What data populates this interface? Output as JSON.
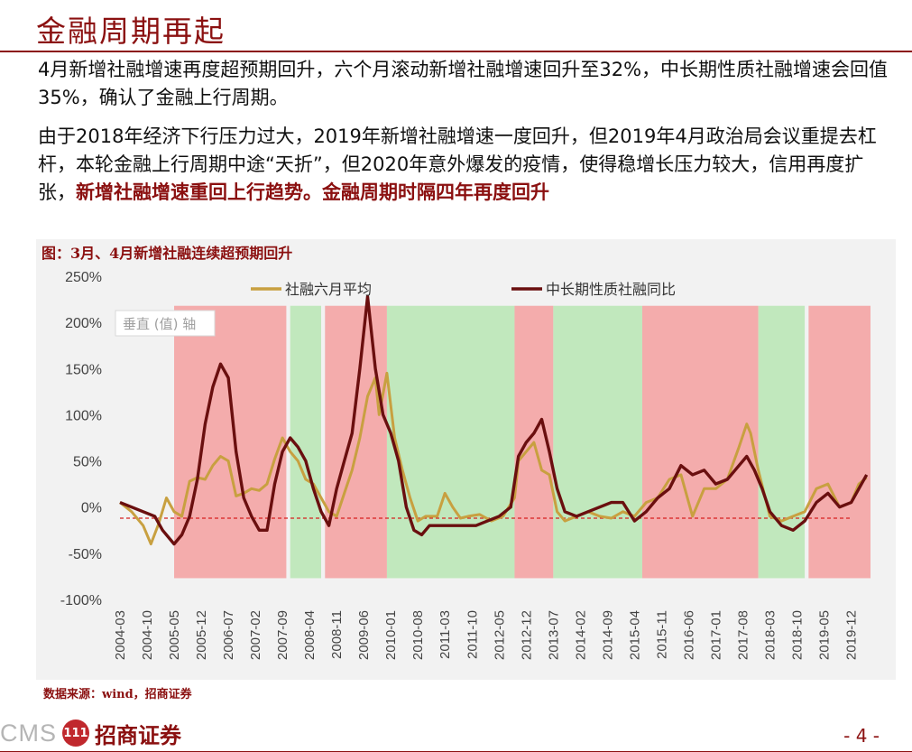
{
  "slide": {
    "title": "金融周期再起",
    "para1": "4月新增社融增速再度超预期回升，六个月滚动新增社融增速回升至32%，中长期性质社融增速会回值35%，确认了金融上行周期。",
    "para2_plain": "由于2018年经济下行压力过大，2019年新增社融增速一度回升，但2019年4月政治局会议重提去杠杆，本轮金融上行周期中途“天折”，但2020年意外爆发的疫情，使得稳增长压力较大，信用再度扩张，",
    "para2_highlight": "新增社融增速重回上行趋势。金融周期时隔四年再度回升",
    "chart_caption": "图：3月、4月新增社融连续超预期回升",
    "source": "数据来源：wind，招商证券",
    "page_number": "- 4 -",
    "logo_text": "CMS",
    "logo_mark": "111",
    "logo_cn": "招商证券"
  },
  "chart_data": {
    "type": "line",
    "ylim": [
      -100,
      250
    ],
    "yticks": [
      -100,
      -50,
      0,
      50,
      100,
      150,
      200,
      250
    ],
    "ytick_labels": [
      "-100%",
      "-50%",
      "0%",
      "50%",
      "100%",
      "150%",
      "200%",
      "250%"
    ],
    "xlabels": [
      "2004-03",
      "2004-10",
      "2005-05",
      "2005-12",
      "2006-07",
      "2007-02",
      "2007-09",
      "2008-04",
      "2008-11",
      "2009-06",
      "2010-01",
      "2010-08",
      "2011-03",
      "2011-10",
      "2012-05",
      "2012-12",
      "2013-07",
      "2014-02",
      "2014-09",
      "2015-04",
      "2015-11",
      "2016-06",
      "2017-01",
      "2017-08",
      "2018-03",
      "2018-10",
      "2019-05",
      "2019-12"
    ],
    "axis_placeholder": "垂直 (值) 轴",
    "reference_line_value": -12,
    "reference_line_color": "#d62020",
    "bands": [
      {
        "start": "2005-05",
        "end": "2007-10",
        "color": "#f4a0a0"
      },
      {
        "start": "2007-11",
        "end": "2008-07",
        "color": "#b8e6b4"
      },
      {
        "start": "2008-08",
        "end": "2009-12",
        "color": "#f4a0a0"
      },
      {
        "start": "2009-12",
        "end": "2012-09",
        "color": "#b8e6b4"
      },
      {
        "start": "2012-09",
        "end": "2013-07",
        "color": "#f4a0a0"
      },
      {
        "start": "2013-07",
        "end": "2015-06",
        "color": "#b8e6b4"
      },
      {
        "start": "2015-06",
        "end": "2017-12",
        "color": "#f4a0a0"
      },
      {
        "start": "2017-12",
        "end": "2018-12",
        "color": "#b8e6b4"
      },
      {
        "start": "2019-01",
        "end": "2020-05",
        "color": "#f4a0a0"
      }
    ],
    "series": [
      {
        "name": "社融六月平均",
        "color": "#c8a040",
        "points": [
          [
            "2004-03",
            5
          ],
          [
            "2004-06",
            -5
          ],
          [
            "2004-09",
            -20
          ],
          [
            "2004-11",
            -40
          ],
          [
            "2005-01",
            -18
          ],
          [
            "2005-03",
            10
          ],
          [
            "2005-05",
            -5
          ],
          [
            "2005-07",
            -10
          ],
          [
            "2005-09",
            28
          ],
          [
            "2005-11",
            32
          ],
          [
            "2006-01",
            30
          ],
          [
            "2006-03",
            45
          ],
          [
            "2006-05",
            55
          ],
          [
            "2006-07",
            50
          ],
          [
            "2006-09",
            12
          ],
          [
            "2006-11",
            15
          ],
          [
            "2007-01",
            20
          ],
          [
            "2007-03",
            18
          ],
          [
            "2007-05",
            25
          ],
          [
            "2007-07",
            52
          ],
          [
            "2007-09",
            75
          ],
          [
            "2007-11",
            60
          ],
          [
            "2008-01",
            50
          ],
          [
            "2008-03",
            30
          ],
          [
            "2008-05",
            25
          ],
          [
            "2008-07",
            10
          ],
          [
            "2008-09",
            -5
          ],
          [
            "2008-11",
            -10
          ],
          [
            "2009-01",
            15
          ],
          [
            "2009-03",
            40
          ],
          [
            "2009-05",
            75
          ],
          [
            "2009-07",
            120
          ],
          [
            "2009-09",
            140
          ],
          [
            "2009-10",
            100
          ],
          [
            "2009-12",
            145
          ],
          [
            "2010-02",
            75
          ],
          [
            "2010-04",
            40
          ],
          [
            "2010-06",
            10
          ],
          [
            "2010-08",
            -15
          ],
          [
            "2010-10",
            -10
          ],
          [
            "2011-01",
            -10
          ],
          [
            "2011-03",
            15
          ],
          [
            "2011-05",
            0
          ],
          [
            "2011-07",
            -12
          ],
          [
            "2011-09",
            -10
          ],
          [
            "2011-12",
            -8
          ],
          [
            "2012-03",
            -15
          ],
          [
            "2012-06",
            -10
          ],
          [
            "2012-09",
            10
          ],
          [
            "2012-10",
            50
          ],
          [
            "2012-12",
            60
          ],
          [
            "2013-02",
            70
          ],
          [
            "2013-04",
            40
          ],
          [
            "2013-06",
            35
          ],
          [
            "2013-08",
            -5
          ],
          [
            "2013-10",
            -15
          ],
          [
            "2014-01",
            -10
          ],
          [
            "2014-04",
            -5
          ],
          [
            "2014-07",
            -10
          ],
          [
            "2014-10",
            -12
          ],
          [
            "2015-01",
            -5
          ],
          [
            "2015-04",
            -10
          ],
          [
            "2015-07",
            5
          ],
          [
            "2015-10",
            10
          ],
          [
            "2016-01",
            30
          ],
          [
            "2016-04",
            35
          ],
          [
            "2016-07",
            -10
          ],
          [
            "2016-10",
            20
          ],
          [
            "2017-01",
            20
          ],
          [
            "2017-04",
            30
          ],
          [
            "2017-07",
            65
          ],
          [
            "2017-09",
            90
          ],
          [
            "2017-10",
            80
          ],
          [
            "2017-12",
            40
          ],
          [
            "2018-03",
            -10
          ],
          [
            "2018-06",
            -15
          ],
          [
            "2018-09",
            -10
          ],
          [
            "2018-12",
            -5
          ],
          [
            "2019-03",
            20
          ],
          [
            "2019-06",
            25
          ],
          [
            "2019-09",
            0
          ],
          [
            "2019-12",
            5
          ],
          [
            "2020-02",
            25
          ],
          [
            "2020-04",
            32
          ]
        ]
      },
      {
        "name": "中长期性质社融同比",
        "color": "#6a0f0f",
        "points": [
          [
            "2004-03",
            5
          ],
          [
            "2004-06",
            0
          ],
          [
            "2004-09",
            -5
          ],
          [
            "2004-12",
            -10
          ],
          [
            "2005-02",
            -25
          ],
          [
            "2005-05",
            -40
          ],
          [
            "2005-07",
            -30
          ],
          [
            "2005-09",
            -10
          ],
          [
            "2005-11",
            30
          ],
          [
            "2006-01",
            90
          ],
          [
            "2006-03",
            130
          ],
          [
            "2006-05",
            155
          ],
          [
            "2006-07",
            140
          ],
          [
            "2006-09",
            60
          ],
          [
            "2006-11",
            10
          ],
          [
            "2007-01",
            -10
          ],
          [
            "2007-03",
            -25
          ],
          [
            "2007-05",
            -25
          ],
          [
            "2007-07",
            25
          ],
          [
            "2007-09",
            60
          ],
          [
            "2007-11",
            75
          ],
          [
            "2008-01",
            65
          ],
          [
            "2008-03",
            50
          ],
          [
            "2008-05",
            20
          ],
          [
            "2008-07",
            -5
          ],
          [
            "2008-09",
            -20
          ],
          [
            "2008-11",
            20
          ],
          [
            "2009-01",
            50
          ],
          [
            "2009-03",
            80
          ],
          [
            "2009-05",
            150
          ],
          [
            "2009-07",
            228
          ],
          [
            "2009-09",
            150
          ],
          [
            "2009-11",
            100
          ],
          [
            "2010-01",
            80
          ],
          [
            "2010-03",
            50
          ],
          [
            "2010-05",
            0
          ],
          [
            "2010-07",
            -25
          ],
          [
            "2010-09",
            -30
          ],
          [
            "2010-11",
            -20
          ],
          [
            "2011-02",
            -20
          ],
          [
            "2011-05",
            -20
          ],
          [
            "2011-08",
            -20
          ],
          [
            "2011-11",
            -20
          ],
          [
            "2012-02",
            -15
          ],
          [
            "2012-05",
            -10
          ],
          [
            "2012-08",
            0
          ],
          [
            "2012-10",
            55
          ],
          [
            "2012-12",
            70
          ],
          [
            "2013-02",
            80
          ],
          [
            "2013-04",
            95
          ],
          [
            "2013-06",
            60
          ],
          [
            "2013-08",
            20
          ],
          [
            "2013-10",
            -5
          ],
          [
            "2014-01",
            -10
          ],
          [
            "2014-04",
            -5
          ],
          [
            "2014-07",
            0
          ],
          [
            "2014-10",
            5
          ],
          [
            "2015-01",
            5
          ],
          [
            "2015-04",
            -15
          ],
          [
            "2015-07",
            -5
          ],
          [
            "2015-10",
            10
          ],
          [
            "2016-01",
            20
          ],
          [
            "2016-04",
            45
          ],
          [
            "2016-07",
            35
          ],
          [
            "2016-10",
            40
          ],
          [
            "2017-01",
            25
          ],
          [
            "2017-04",
            30
          ],
          [
            "2017-07",
            45
          ],
          [
            "2017-09",
            55
          ],
          [
            "2017-11",
            40
          ],
          [
            "2018-01",
            20
          ],
          [
            "2018-03",
            -5
          ],
          [
            "2018-06",
            -20
          ],
          [
            "2018-09",
            -25
          ],
          [
            "2018-12",
            -15
          ],
          [
            "2019-03",
            5
          ],
          [
            "2019-06",
            15
          ],
          [
            "2019-09",
            0
          ],
          [
            "2019-12",
            5
          ],
          [
            "2020-02",
            20
          ],
          [
            "2020-04",
            35
          ]
        ]
      }
    ]
  }
}
